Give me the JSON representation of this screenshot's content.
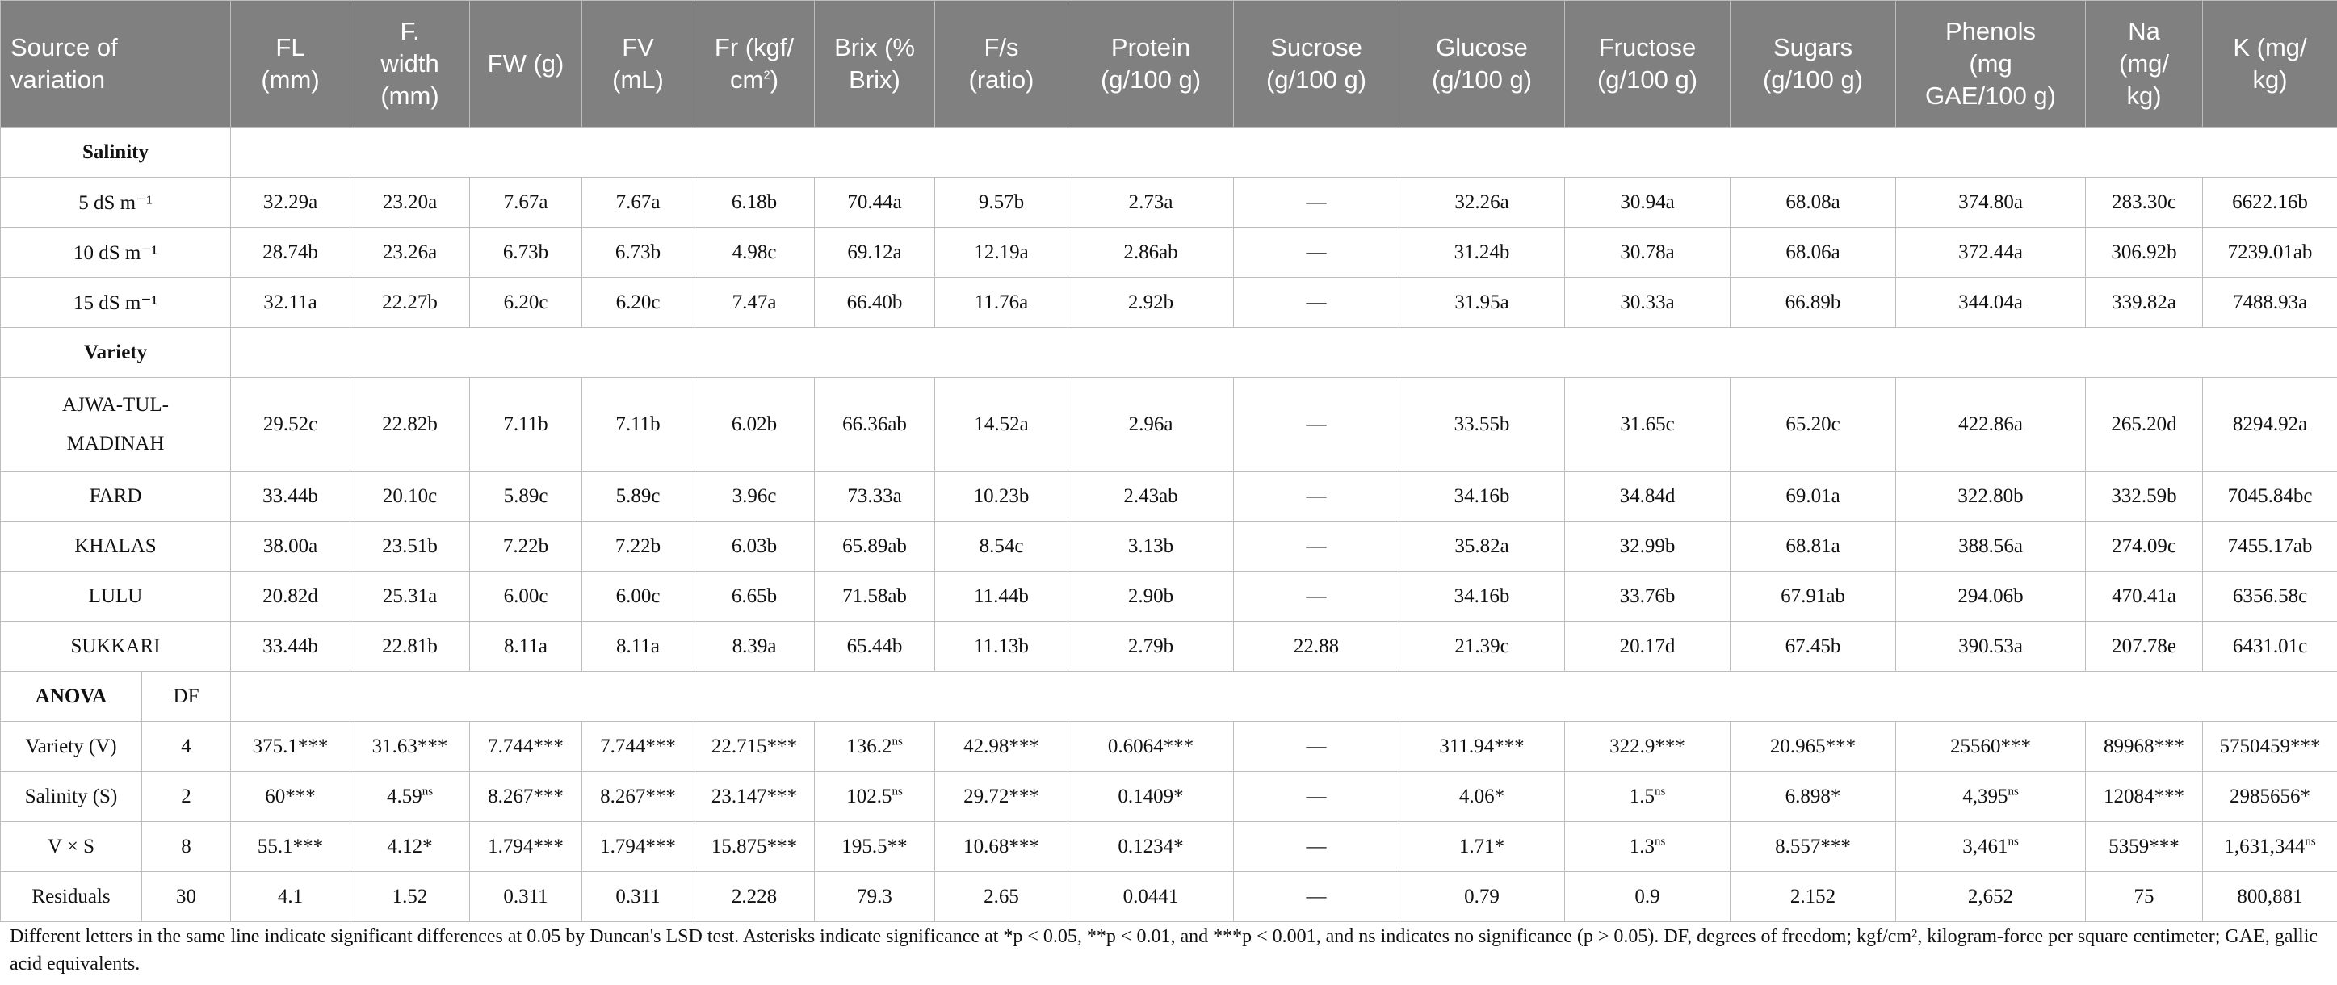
{
  "headers": [
    "Source of variation",
    "FL (mm)",
    "F. width (mm)",
    "FW (g)",
    "FV (mL)",
    "Fr (kgf/cm²)",
    "Brix (% Brix)",
    "F/s (ratio)",
    "Protein (g/100 g)",
    "Sucrose (g/100 g)",
    "Glucose (g/100 g)",
    "Fructose (g/100 g)",
    "Sugars (g/100 g)",
    "Phenols (mg GAE/100 g)",
    "Na (mg/kg)",
    "K (mg/kg)"
  ],
  "header_cells": {
    "source_1": "Source of",
    "source_2": "variation",
    "fl_1": "FL",
    "fl_2": "(mm)",
    "fwidth_1": "F.",
    "fwidth_2": "width",
    "fwidth_3": "(mm)",
    "fw": "FW (g)",
    "fv_1": "FV",
    "fv_2": "(mL)",
    "fr_1": "Fr (kgf/",
    "fr_2": "cm",
    "fr_sup": "2",
    "fr_3": ")",
    "brix_1": "Brix (%",
    "brix_2": "Brix)",
    "fs_1": "F/s",
    "fs_2": "(ratio)",
    "protein_1": "Protein",
    "protein_2": "(g/100 g)",
    "sucrose_1": "Sucrose",
    "sucrose_2": "(g/100 g)",
    "glucose_1": "Glucose",
    "glucose_2": "(g/100 g)",
    "fructose_1": "Fructose",
    "fructose_2": "(g/100 g)",
    "sugars_1": "Sugars",
    "sugars_2": "(g/100 g)",
    "phenols_1": "Phenols",
    "phenols_2": "(mg",
    "phenols_3": "GAE/100 g)",
    "na_1": "Na",
    "na_2": "(mg/",
    "na_3": "kg)",
    "k_1": "K (mg/",
    "k_2": "kg)"
  },
  "sections": {
    "salinity": "Salinity",
    "variety": "Variety",
    "anova": "ANOVA",
    "df": "DF"
  },
  "salinity_rows": [
    {
      "label": "5 dS m⁻¹",
      "values": [
        "32.29a",
        "23.20a",
        "7.67a",
        "7.67a",
        "6.18b",
        "70.44a",
        "9.57b",
        "2.73a",
        "—",
        "32.26a",
        "30.94a",
        "68.08a",
        "374.80a",
        "283.30c",
        "6622.16b"
      ]
    },
    {
      "label": "10 dS m⁻¹",
      "values": [
        "28.74b",
        "23.26a",
        "6.73b",
        "6.73b",
        "4.98c",
        "69.12a",
        "12.19a",
        "2.86ab",
        "—",
        "31.24b",
        "30.78a",
        "68.06a",
        "372.44a",
        "306.92b",
        "7239.01ab"
      ]
    },
    {
      "label": "15 dS m⁻¹",
      "values": [
        "32.11a",
        "22.27b",
        "6.20c",
        "6.20c",
        "7.47a",
        "66.40b",
        "11.76a",
        "2.92b",
        "—",
        "31.95a",
        "30.33a",
        "66.89b",
        "344.04a",
        "339.82a",
        "7488.93a"
      ]
    }
  ],
  "variety_rows": [
    {
      "label_1": "AJWA-TUL-",
      "label_2": "MADINAH",
      "values": [
        "29.52c",
        "22.82b",
        "7.11b",
        "7.11b",
        "6.02b",
        "66.36ab",
        "14.52a",
        "2.96a",
        "—",
        "33.55b",
        "31.65c",
        "65.20c",
        "422.86a",
        "265.20d",
        "8294.92a"
      ]
    },
    {
      "label": "FARD",
      "values": [
        "33.44b",
        "20.10c",
        "5.89c",
        "5.89c",
        "3.96c",
        "73.33a",
        "10.23b",
        "2.43ab",
        "—",
        "34.16b",
        "34.84d",
        "69.01a",
        "322.80b",
        "332.59b",
        "7045.84bc"
      ]
    },
    {
      "label": "KHALAS",
      "values": [
        "38.00a",
        "23.51b",
        "7.22b",
        "7.22b",
        "6.03b",
        "65.89ab",
        "8.54c",
        "3.13b",
        "—",
        "35.82a",
        "32.99b",
        "68.81a",
        "388.56a",
        "274.09c",
        "7455.17ab"
      ]
    },
    {
      "label": "LULU",
      "values": [
        "20.82d",
        "25.31a",
        "6.00c",
        "6.00c",
        "6.65b",
        "71.58ab",
        "11.44b",
        "2.90b",
        "—",
        "34.16b",
        "33.76b",
        "67.91ab",
        "294.06b",
        "470.41a",
        "6356.58c"
      ]
    },
    {
      "label": "SUKKARI",
      "values": [
        "33.44b",
        "22.81b",
        "8.11a",
        "8.11a",
        "8.39a",
        "65.44b",
        "11.13b",
        "2.79b",
        "22.88",
        "21.39c",
        "20.17d",
        "67.45b",
        "390.53a",
        "207.78e",
        "6431.01c"
      ]
    }
  ],
  "anova_rows": [
    {
      "label": "Variety (V)",
      "df": "4",
      "values": [
        [
          "375.1",
          "***"
        ],
        [
          "31.63",
          "***"
        ],
        [
          "7.744",
          "***"
        ],
        [
          "7.744",
          "***"
        ],
        [
          "22.715",
          "***"
        ],
        [
          "136.2",
          "ns"
        ],
        [
          "42.98",
          "***"
        ],
        [
          "0.6064",
          "***"
        ],
        [
          "—",
          ""
        ],
        [
          "311.94",
          "***"
        ],
        [
          "322.9",
          "***"
        ],
        [
          "20.965",
          "***"
        ],
        [
          "25560",
          "***"
        ],
        [
          "89968",
          "***"
        ],
        [
          "5750459",
          "***"
        ]
      ]
    },
    {
      "label": "Salinity (S)",
      "df": "2",
      "values": [
        [
          "60",
          "***"
        ],
        [
          "4.59",
          "ns"
        ],
        [
          "8.267",
          "***"
        ],
        [
          "8.267",
          "***"
        ],
        [
          "23.147",
          "***"
        ],
        [
          "102.5",
          "ns"
        ],
        [
          "29.72",
          "***"
        ],
        [
          "0.1409",
          "*"
        ],
        [
          "—",
          ""
        ],
        [
          "4.06",
          "*"
        ],
        [
          "1.5",
          "ns"
        ],
        [
          "6.898",
          "*"
        ],
        [
          "4,395",
          "ns"
        ],
        [
          "12084",
          "***"
        ],
        [
          "2985656",
          "*"
        ]
      ]
    },
    {
      "label": "V × S",
      "df": "8",
      "values": [
        [
          "55.1",
          "***"
        ],
        [
          "4.12",
          "*"
        ],
        [
          "1.794",
          "***"
        ],
        [
          "1.794",
          "***"
        ],
        [
          "15.875",
          "***"
        ],
        [
          "195.5",
          "**"
        ],
        [
          "10.68",
          "***"
        ],
        [
          "0.1234",
          "*"
        ],
        [
          "—",
          ""
        ],
        [
          "1.71",
          "*"
        ],
        [
          "1.3",
          "ns"
        ],
        [
          "8.557",
          "***"
        ],
        [
          "3,461",
          "ns"
        ],
        [
          "5359",
          "***"
        ],
        [
          "1,631,344",
          "ns"
        ]
      ]
    },
    {
      "label": "Residuals",
      "df": "30",
      "values": [
        [
          "4.1",
          ""
        ],
        [
          "1.52",
          ""
        ],
        [
          "0.311",
          ""
        ],
        [
          "0.311",
          ""
        ],
        [
          "2.228",
          ""
        ],
        [
          "79.3",
          ""
        ],
        [
          "2.65",
          ""
        ],
        [
          "0.0441",
          ""
        ],
        [
          "—",
          ""
        ],
        [
          "0.79",
          ""
        ],
        [
          "0.9",
          ""
        ],
        [
          "2.152",
          ""
        ],
        [
          "2,652",
          ""
        ],
        [
          "75",
          ""
        ],
        [
          "800,881",
          ""
        ]
      ]
    }
  ],
  "footnote": "Different letters in the same line indicate significant differences at 0.05 by Duncan's LSD test. Asterisks indicate significance at *p < 0.05, **p < 0.01, and ***p < 0.001, and ns indicates no significance (p > 0.05). DF, degrees of freedom; kgf/cm², kilogram-force per square centimeter; GAE, gallic acid equivalents."
}
